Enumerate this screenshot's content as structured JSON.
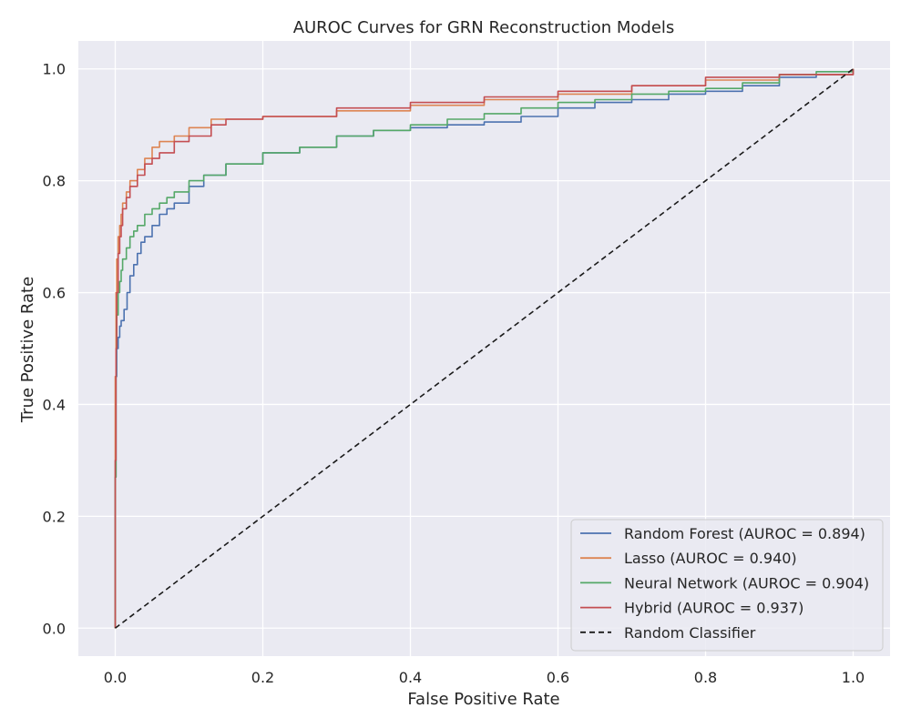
{
  "chart_data": {
    "type": "line",
    "title": "AUROC Curves for GRN Reconstruction Models",
    "xlabel": "False Positive Rate",
    "ylabel": "True Positive Rate",
    "xlim": [
      -0.05,
      1.05
    ],
    "ylim": [
      -0.05,
      1.05
    ],
    "x_ticks": [
      "0.0",
      "0.2",
      "0.4",
      "0.6",
      "0.8",
      "1.0"
    ],
    "y_ticks": [
      "0.0",
      "0.2",
      "0.4",
      "0.6",
      "0.8",
      "1.0"
    ],
    "grid": true,
    "background": "#eaeaf2",
    "legend_position": "lower-right",
    "series": [
      {
        "name": "Random Forest (AUROC = 0.894)",
        "color": "#4c72b0",
        "x": [
          0,
          0,
          0.001,
          0.002,
          0.004,
          0.006,
          0.008,
          0.012,
          0.016,
          0.02,
          0.025,
          0.03,
          0.035,
          0.04,
          0.05,
          0.06,
          0.07,
          0.08,
          0.1,
          0.12,
          0.15,
          0.2,
          0.25,
          0.3,
          0.35,
          0.4,
          0.45,
          0.5,
          0.55,
          0.6,
          0.65,
          0.7,
          0.75,
          0.8,
          0.85,
          0.9,
          0.95,
          1.0
        ],
        "y": [
          0,
          0.27,
          0.45,
          0.5,
          0.52,
          0.54,
          0.55,
          0.57,
          0.6,
          0.63,
          0.65,
          0.67,
          0.69,
          0.7,
          0.72,
          0.74,
          0.75,
          0.76,
          0.79,
          0.81,
          0.83,
          0.85,
          0.86,
          0.88,
          0.89,
          0.895,
          0.9,
          0.905,
          0.915,
          0.93,
          0.94,
          0.945,
          0.955,
          0.96,
          0.97,
          0.985,
          0.99,
          1.0
        ]
      },
      {
        "name": "Lasso (AUROC = 0.940)",
        "color": "#dd8452",
        "x": [
          0,
          0,
          0.001,
          0.002,
          0.004,
          0.006,
          0.008,
          0.01,
          0.015,
          0.02,
          0.03,
          0.04,
          0.05,
          0.06,
          0.08,
          0.1,
          0.13,
          0.2,
          0.3,
          0.4,
          0.5,
          0.6,
          0.7,
          0.8,
          0.9,
          1.0
        ],
        "y": [
          0,
          0.45,
          0.6,
          0.66,
          0.7,
          0.72,
          0.74,
          0.76,
          0.78,
          0.8,
          0.82,
          0.84,
          0.86,
          0.87,
          0.88,
          0.895,
          0.91,
          0.915,
          0.925,
          0.935,
          0.945,
          0.955,
          0.97,
          0.98,
          0.99,
          1.0
        ]
      },
      {
        "name": "Neural Network (AUROC = 0.904)",
        "color": "#55a868",
        "x": [
          0,
          0,
          0.001,
          0.002,
          0.004,
          0.006,
          0.008,
          0.01,
          0.015,
          0.02,
          0.025,
          0.03,
          0.04,
          0.05,
          0.06,
          0.07,
          0.08,
          0.1,
          0.12,
          0.15,
          0.2,
          0.25,
          0.3,
          0.35,
          0.4,
          0.45,
          0.5,
          0.55,
          0.6,
          0.65,
          0.7,
          0.75,
          0.8,
          0.85,
          0.9,
          0.95,
          1.0
        ],
        "y": [
          0,
          0.27,
          0.5,
          0.56,
          0.6,
          0.62,
          0.64,
          0.66,
          0.68,
          0.7,
          0.71,
          0.72,
          0.74,
          0.75,
          0.76,
          0.77,
          0.78,
          0.8,
          0.81,
          0.83,
          0.85,
          0.86,
          0.88,
          0.89,
          0.9,
          0.91,
          0.92,
          0.93,
          0.94,
          0.945,
          0.955,
          0.96,
          0.965,
          0.975,
          0.99,
          0.995,
          1.0
        ]
      },
      {
        "name": "Hybrid (AUROC = 0.937)",
        "color": "#c44e52",
        "x": [
          0,
          0,
          0.001,
          0.002,
          0.004,
          0.006,
          0.008,
          0.01,
          0.015,
          0.02,
          0.03,
          0.04,
          0.05,
          0.06,
          0.08,
          0.1,
          0.13,
          0.15,
          0.2,
          0.3,
          0.4,
          0.5,
          0.6,
          0.7,
          0.8,
          0.9,
          1.0
        ],
        "y": [
          0,
          0.3,
          0.5,
          0.6,
          0.67,
          0.7,
          0.72,
          0.75,
          0.77,
          0.79,
          0.81,
          0.83,
          0.84,
          0.85,
          0.87,
          0.88,
          0.9,
          0.91,
          0.915,
          0.93,
          0.94,
          0.95,
          0.96,
          0.97,
          0.985,
          0.99,
          1.0
        ]
      }
    ],
    "reference_line": {
      "name": "Random Classifier",
      "color": "#1a1a1a",
      "style": "dashed",
      "x": [
        0,
        1
      ],
      "y": [
        0,
        1
      ]
    }
  }
}
